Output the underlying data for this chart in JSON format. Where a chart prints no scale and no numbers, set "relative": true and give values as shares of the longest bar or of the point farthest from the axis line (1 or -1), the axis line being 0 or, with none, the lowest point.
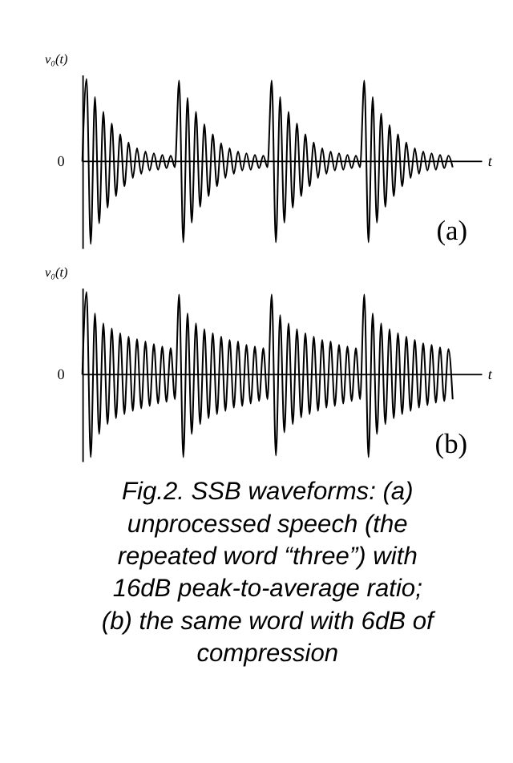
{
  "chart_data": [
    {
      "type": "line",
      "relative": true,
      "ylabel": "v₀(t)",
      "xlabel": "t",
      "line_style": "solid",
      "marker": "none",
      "grid": false,
      "tick_labels": false,
      "categories": [
        null,
        null,
        null,
        null,
        null,
        null,
        null,
        null,
        null,
        null,
        null,
        null,
        null,
        null,
        null,
        null,
        null,
        null,
        null,
        null,
        null,
        null,
        null,
        null,
        null,
        null,
        null,
        null,
        null,
        null,
        null,
        null,
        null,
        null,
        null,
        null,
        null,
        null,
        null,
        null,
        null,
        null,
        null,
        null,
        null,
        null,
        null,
        null,
        null,
        null,
        null,
        null,
        null,
        null,
        null,
        null,
        null,
        null,
        null,
        null,
        null,
        null,
        null,
        null,
        null,
        null,
        null,
        null,
        null,
        null,
        null,
        null,
        null,
        null,
        null,
        null,
        null,
        null,
        null,
        null,
        null,
        null,
        null,
        null,
        null,
        null,
        null,
        null,
        null
      ],
      "series": [
        {
          "color": "#000000",
          "values": [
            0,
            1,
            -1,
            0.78,
            -0.75,
            0.6,
            -0.56,
            0.46,
            -0.42,
            0.33,
            -0.3,
            0.23,
            -0.2,
            0.16,
            -0.15,
            0.12,
            -0.11,
            0.1,
            -0.1,
            0.08,
            -0.08,
            0.07,
            -0.07,
            0.98,
            -0.98,
            0.77,
            -0.74,
            0.6,
            -0.55,
            0.45,
            -0.42,
            0.33,
            -0.3,
            0.22,
            -0.2,
            0.16,
            -0.15,
            0.12,
            -0.11,
            0.1,
            -0.1,
            0.08,
            -0.08,
            0.07,
            -0.07,
            0.98,
            -0.98,
            0.78,
            -0.74,
            0.6,
            -0.56,
            0.46,
            -0.42,
            0.33,
            -0.3,
            0.23,
            -0.2,
            0.16,
            -0.15,
            0.12,
            -0.11,
            0.1,
            -0.1,
            0.08,
            -0.08,
            0.07,
            -0.07,
            0.98,
            -0.98,
            0.78,
            -0.74,
            0.58,
            -0.55,
            0.44,
            -0.42,
            0.33,
            -0.3,
            0.23,
            -0.2,
            0.16,
            -0.15,
            0.12,
            -0.11,
            0.1,
            -0.1,
            0.08,
            -0.08,
            0.07,
            -0.07
          ]
        }
      ],
      "annotations": [
        "0",
        "(a)"
      ]
    },
    {
      "type": "line",
      "relative": true,
      "ylabel": "v₀(t)",
      "xlabel": "t",
      "line_style": "solid",
      "marker": "none",
      "grid": false,
      "tick_labels": false,
      "categories": [
        null,
        null,
        null,
        null,
        null,
        null,
        null,
        null,
        null,
        null,
        null,
        null,
        null,
        null,
        null,
        null,
        null,
        null,
        null,
        null,
        null,
        null,
        null,
        null,
        null,
        null,
        null,
        null,
        null,
        null,
        null,
        null,
        null,
        null,
        null,
        null,
        null,
        null,
        null,
        null,
        null,
        null,
        null,
        null,
        null,
        null,
        null,
        null,
        null,
        null,
        null,
        null,
        null,
        null,
        null,
        null,
        null,
        null,
        null,
        null,
        null,
        null,
        null,
        null,
        null,
        null,
        null,
        null,
        null,
        null,
        null,
        null,
        null,
        null,
        null,
        null,
        null,
        null,
        null,
        null,
        null,
        null,
        null,
        null,
        null,
        null,
        null,
        null,
        null
      ],
      "series": [
        {
          "color": "#000000",
          "values": [
            0,
            1,
            -1,
            0.74,
            -0.72,
            0.62,
            -0.6,
            0.56,
            -0.53,
            0.5,
            -0.48,
            0.46,
            -0.44,
            0.43,
            -0.41,
            0.4,
            -0.38,
            0.37,
            -0.35,
            0.34,
            -0.33,
            0.32,
            -0.3,
            0.97,
            -1,
            0.74,
            -0.72,
            0.62,
            -0.6,
            0.55,
            -0.53,
            0.5,
            -0.48,
            0.46,
            -0.44,
            0.42,
            -0.4,
            0.4,
            -0.38,
            0.36,
            -0.35,
            0.34,
            -0.32,
            0.32,
            -0.3,
            0.97,
            -0.98,
            0.72,
            -0.7,
            0.62,
            -0.6,
            0.55,
            -0.52,
            0.5,
            -0.48,
            0.46,
            -0.44,
            0.42,
            -0.4,
            0.4,
            -0.38,
            0.36,
            -0.35,
            0.34,
            -0.32,
            0.32,
            -0.3,
            0.97,
            -1,
            0.74,
            -0.72,
            0.62,
            -0.6,
            0.55,
            -0.53,
            0.5,
            -0.48,
            0.46,
            -0.44,
            0.42,
            -0.4,
            0.38,
            -0.37,
            0.36,
            -0.34,
            0.33,
            -0.32,
            0.31,
            -0.3
          ]
        }
      ],
      "annotations": [
        "0",
        "(b)",
        "Fig.2. SSB waveforms: (a) unprocessed speech (the repeated word “three”) with 16dB peak-to-average ratio; (b) the same word  with 6dB of compression"
      ]
    }
  ]
}
